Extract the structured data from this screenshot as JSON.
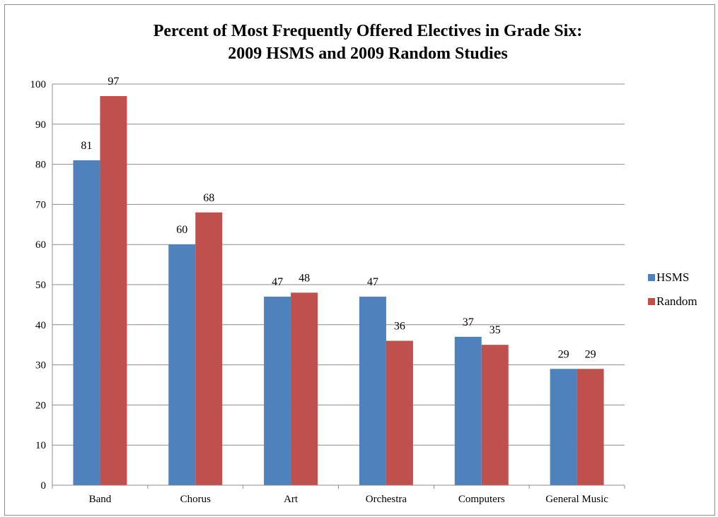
{
  "chart_data": {
    "type": "bar",
    "title_lines": [
      "Percent of Most Frequently Offered Electives in Grade Six:",
      "2009 HSMS and 2009 Random Studies"
    ],
    "categories": [
      "Band",
      "Chorus",
      "Art",
      "Orchestra",
      "Computers",
      "General Music"
    ],
    "series": [
      {
        "name": "HSMS",
        "color": "#4f81bd",
        "values": [
          81,
          60,
          47,
          47,
          37,
          29
        ]
      },
      {
        "name": "Random",
        "color": "#c0504d",
        "values": [
          97,
          68,
          48,
          36,
          35,
          29
        ]
      }
    ],
    "ylim": [
      0,
      100
    ],
    "yticks": [
      0,
      10,
      20,
      30,
      40,
      50,
      60,
      70,
      80,
      90,
      100
    ],
    "grid": true,
    "legend": "right",
    "data_labels": true
  }
}
